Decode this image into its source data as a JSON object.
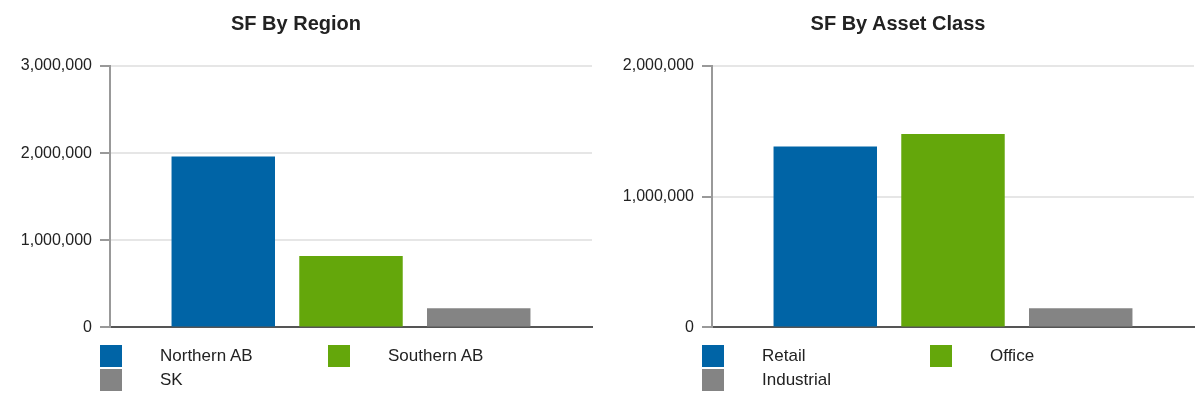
{
  "chart_data": [
    {
      "type": "bar",
      "title": "SF By Region",
      "categories": [
        null
      ],
      "series": [
        {
          "name": "Northern AB",
          "color": "#0064a6",
          "values": [
            1960000
          ]
        },
        {
          "name": "Southern AB",
          "color": "#64a70b",
          "values": [
            820000
          ]
        },
        {
          "name": "SK",
          "color": "#848484",
          "values": [
            220000
          ]
        }
      ],
      "ylim": [
        0,
        3000000
      ],
      "yticks": [
        {
          "value": 0,
          "label": "0"
        },
        {
          "value": 1000000,
          "label": "1,000,000"
        },
        {
          "value": 2000000,
          "label": "2,000,000"
        },
        {
          "value": 3000000,
          "label": "3,000,000"
        }
      ],
      "grid": "y",
      "legend": "bottom",
      "tick_labels": "y"
    },
    {
      "type": "bar",
      "title": "SF By Asset Class",
      "categories": [
        null
      ],
      "series": [
        {
          "name": "Retail",
          "color": "#0064a6",
          "values": [
            1385000
          ]
        },
        {
          "name": "Office",
          "color": "#64a70b",
          "values": [
            1480000
          ]
        },
        {
          "name": "Industrial",
          "color": "#848484",
          "values": [
            147000
          ]
        }
      ],
      "ylim": [
        0,
        2000000
      ],
      "yticks": [
        {
          "value": 0,
          "label": "0"
        },
        {
          "value": 1000000,
          "label": "1,000,000"
        },
        {
          "value": 2000000,
          "label": "2,000,000"
        }
      ],
      "grid": "y",
      "legend": "bottom",
      "tick_labels": "y"
    }
  ]
}
